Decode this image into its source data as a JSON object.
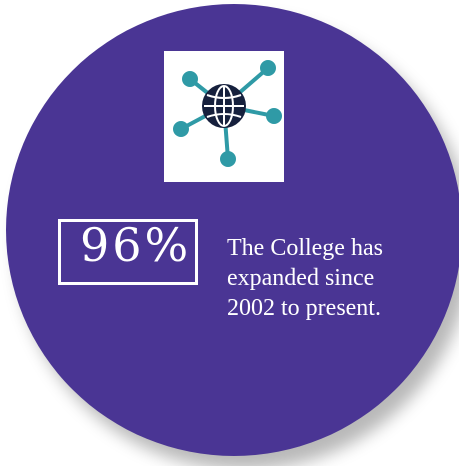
{
  "stat": {
    "value": "96%",
    "description_lines": [
      "The College has",
      "expanded since",
      "2002 to present."
    ]
  },
  "icon": {
    "name": "network-globe-icon",
    "node_color": "#2f9aa6",
    "globe_color": "#16203d",
    "card_color": "#ffffff"
  },
  "colors": {
    "circle": "#4a3594",
    "text": "#ffffff",
    "background": "#ffffff"
  }
}
